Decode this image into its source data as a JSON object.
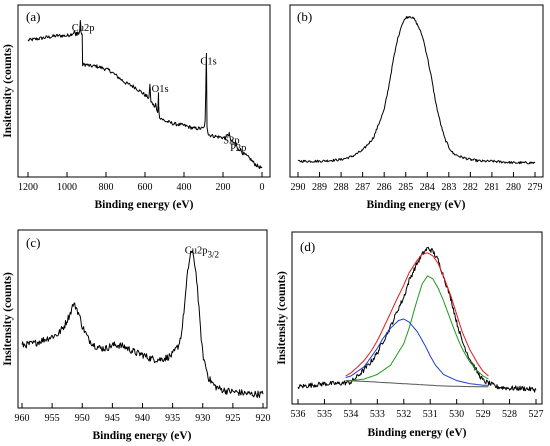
{
  "chart_data": [
    {
      "id": "a",
      "type": "line",
      "panel_label": "(a)",
      "xlabel": "Binding energy (eV)",
      "ylabel": "Insitensity (counts)",
      "xlim": [
        1200,
        0
      ],
      "ylim": [
        0,
        100
      ],
      "xticks": [
        1200,
        1000,
        800,
        600,
        400,
        200,
        0
      ],
      "yticks": [],
      "annotations": [
        {
          "text": "Cu2p",
          "x": 945,
          "y": 92
        },
        {
          "text": "O1s",
          "x": 535,
          "y": 52
        },
        {
          "text": "C1s",
          "x": 285,
          "y": 70
        },
        {
          "text": "S2p",
          "x": 168,
          "y": 18
        },
        {
          "text": "P2p",
          "x": 133,
          "y": 13
        }
      ],
      "series": [
        {
          "color": "#000000",
          "noise": 1.2,
          "x": [
            1200,
            1150,
            1100,
            1050,
            1000,
            980,
            965,
            962,
            960,
            955,
            952,
            950,
            948,
            945,
            940,
            935,
            933,
            932,
            930,
            928,
            925,
            922,
            920,
            900,
            880,
            850,
            800,
            780,
            700,
            650,
            620,
            600,
            580,
            575,
            570,
            565,
            560,
            550,
            545,
            540,
            535,
            533,
            531,
            530,
            528,
            525,
            520,
            500,
            450,
            400,
            350,
            300,
            292,
            288,
            286,
            285,
            284,
            282,
            278,
            275,
            250,
            200,
            190,
            180,
            170,
            168,
            165,
            160,
            150,
            140,
            135,
            133,
            130,
            125,
            110,
            100,
            80,
            60,
            40,
            20,
            0
          ],
          "y": [
            86,
            87,
            88,
            89,
            89,
            90,
            91,
            93,
            91,
            89,
            91,
            90,
            89,
            91,
            91,
            92,
            96,
            99,
            96,
            92,
            90,
            89,
            70,
            70,
            69,
            69,
            67,
            66,
            58,
            55,
            52,
            50,
            48,
            56,
            46,
            45,
            44,
            42,
            44,
            40,
            38,
            44,
            52,
            44,
            38,
            36,
            35,
            33,
            31,
            30,
            28,
            28,
            32,
            52,
            70,
            78,
            64,
            30,
            26,
            24,
            23,
            22,
            22,
            23,
            24,
            25,
            22,
            20,
            19,
            18,
            19,
            18,
            16,
            15,
            14,
            12,
            10,
            8,
            5,
            3,
            2
          ]
        }
      ]
    },
    {
      "id": "b",
      "type": "line",
      "panel_label": "(b)",
      "xlabel": "Binding energy (eV)",
      "ylabel": "",
      "xlim": [
        290,
        279
      ],
      "ylim": [
        0,
        100
      ],
      "xticks": [
        290,
        289,
        288,
        287,
        286,
        285,
        284,
        283,
        282,
        281,
        280,
        279
      ],
      "yticks": [],
      "series": [
        {
          "color": "#000000",
          "noise": 0.8,
          "x": [
            290,
            289,
            288,
            287.5,
            287,
            286.5,
            286,
            285.8,
            285.6,
            285.4,
            285.2,
            285,
            284.8,
            284.6,
            284.4,
            284.2,
            284,
            283.8,
            283.6,
            283.4,
            283.2,
            283,
            282.8,
            282.5,
            282,
            281.5,
            281,
            280,
            279
          ],
          "y": [
            5,
            5,
            6,
            8,
            12,
            20,
            38,
            52,
            68,
            82,
            92,
            97,
            98,
            96,
            91,
            84,
            72,
            58,
            42,
            30,
            20,
            14,
            10,
            8,
            6,
            5,
            5,
            4,
            4
          ]
        }
      ]
    },
    {
      "id": "c",
      "type": "line",
      "panel_label": "(c)",
      "xlabel": "Binding energy (eV)",
      "ylabel": "Insitensity (counts)",
      "xlim": [
        960,
        920
      ],
      "ylim": [
        0,
        100
      ],
      "xticks": [
        960,
        955,
        950,
        945,
        940,
        935,
        930,
        925,
        920
      ],
      "yticks": [],
      "annotations": [
        {
          "text": "Cu2p",
          "sub": "3/2",
          "x": 932,
          "y": 94
        }
      ],
      "series": [
        {
          "color": "#000000",
          "noise": 2.2,
          "x": [
            960,
            958,
            956,
            954,
            953,
            952,
            951.5,
            951,
            950.5,
            950,
            949,
            948,
            947,
            946,
            945,
            944,
            943,
            942,
            941,
            940,
            939,
            938,
            937,
            936,
            935,
            934,
            933.5,
            933,
            932.5,
            932,
            931.5,
            931,
            930.5,
            930,
            929,
            928,
            927,
            926,
            924,
            922,
            920
          ],
          "y": [
            36,
            37,
            40,
            43,
            48,
            56,
            62,
            60,
            55,
            48,
            40,
            36,
            34,
            34,
            36,
            36,
            35,
            33,
            31,
            30,
            28,
            27,
            27,
            28,
            30,
            36,
            44,
            62,
            82,
            95,
            92,
            78,
            52,
            30,
            15,
            10,
            8,
            7,
            6,
            5,
            5
          ]
        }
      ]
    },
    {
      "id": "d",
      "type": "line",
      "panel_label": "(d)",
      "xlabel": "Binding energy (eV)",
      "ylabel": "Insitensity (counts)",
      "xlim": [
        536,
        527
      ],
      "ylim": [
        0,
        100
      ],
      "xticks": [
        536,
        535,
        534,
        533,
        532,
        531,
        530,
        529,
        528,
        527
      ],
      "yticks": [],
      "series": [
        {
          "color": "#000000",
          "noise": 1.6,
          "x": [
            536,
            535.5,
            535,
            534.5,
            534,
            533.8,
            533.5,
            533.2,
            533,
            532.8,
            532.5,
            532.2,
            532,
            531.8,
            531.5,
            531.3,
            531.1,
            530.9,
            530.7,
            530.5,
            530.2,
            530,
            529.8,
            529.5,
            529.2,
            529,
            528.5,
            528,
            527.5,
            527
          ],
          "y": [
            6,
            7,
            8,
            8,
            9,
            12,
            17,
            23,
            28,
            35,
            45,
            57,
            64,
            75,
            86,
            92,
            96,
            94,
            88,
            78,
            62,
            48,
            36,
            24,
            15,
            10,
            6,
            5,
            5,
            4
          ]
        },
        {
          "color": "#e31a1c",
          "noise": 0,
          "x": [
            534.2,
            534,
            533.8,
            533.5,
            533.2,
            533,
            532.8,
            532.5,
            532.2,
            532,
            531.8,
            531.5,
            531.3,
            531.1,
            530.9,
            530.7,
            530.5,
            530.2,
            530,
            529.8,
            529.5,
            529.2,
            529,
            528.8
          ],
          "y": [
            13,
            15,
            18,
            23,
            30,
            36,
            43,
            54,
            65,
            72,
            80,
            88,
            92,
            93,
            91,
            86,
            78,
            64,
            53,
            42,
            30,
            21,
            16,
            13
          ]
        },
        {
          "color": "#1f9a1f",
          "noise": 0,
          "x": [
            534.2,
            534,
            533.5,
            533,
            532.5,
            532,
            531.8,
            531.5,
            531.3,
            531.1,
            530.9,
            530.7,
            530.5,
            530.2,
            530,
            529.8,
            529.5,
            529.2,
            529,
            528.8
          ],
          "y": [
            10,
            10,
            11,
            14,
            20,
            34,
            44,
            62,
            73,
            78,
            76,
            70,
            62,
            48,
            39,
            31,
            22,
            16,
            13,
            11
          ]
        },
        {
          "color": "#1f3fd6",
          "noise": 0,
          "x": [
            534.2,
            534,
            533.5,
            533,
            532.8,
            532.5,
            532.2,
            532,
            531.8,
            531.5,
            531.2,
            531,
            530.8,
            530.5,
            530,
            529.5,
            529,
            528.8
          ],
          "y": [
            12,
            13,
            19,
            31,
            37,
            44,
            49,
            50,
            48,
            42,
            33,
            26,
            20,
            14,
            10,
            8,
            7,
            7
          ]
        },
        {
          "color": "#555555",
          "noise": 0,
          "x": [
            534.2,
            533.5,
            533,
            532.5,
            532,
            531.5,
            531,
            530.5,
            530,
            529.5,
            529,
            528.8
          ],
          "y": [
            10,
            9.5,
            9,
            8.5,
            8,
            7.5,
            7,
            6.5,
            6.3,
            6.1,
            6,
            6
          ]
        }
      ]
    }
  ]
}
